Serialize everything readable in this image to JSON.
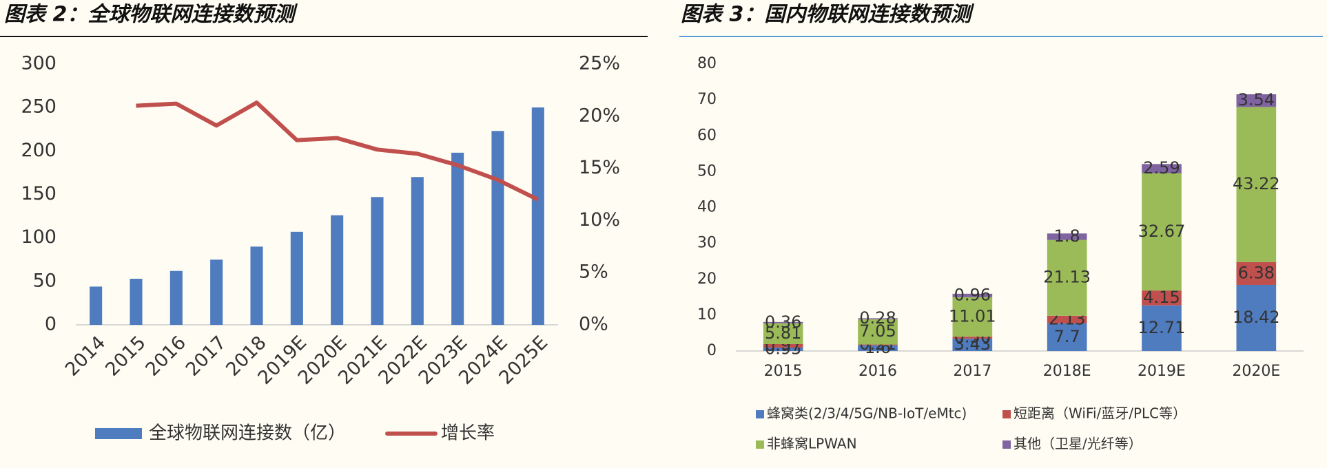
{
  "chart_data": [
    {
      "type": "combo",
      "title": "图表 2：全球物联网连接数预测",
      "categories": [
        "2014",
        "2015",
        "2016",
        "2017",
        "2018",
        "2019E",
        "2020E",
        "2021E",
        "2022E",
        "2023E",
        "2024E",
        "2025E"
      ],
      "series": [
        {
          "name": "全球物联网连接数（亿）",
          "color": "#4f7bbf",
          "type": "bar",
          "values": [
            44,
            53,
            62,
            75,
            90,
            107,
            126,
            147,
            170,
            198,
            223,
            250
          ]
        },
        {
          "name": "增长率",
          "color": "#c0504d",
          "type": "line",
          "axis": "y2",
          "values": [
            null,
            21.0,
            21.2,
            19.1,
            21.3,
            17.7,
            17.9,
            16.8,
            16.4,
            15.3,
            13.9,
            12.0
          ]
        }
      ],
      "ylim": [
        0,
        300
      ],
      "yticks": [
        0,
        50,
        100,
        150,
        200,
        250,
        300
      ],
      "y2lim": [
        0,
        25
      ],
      "y2ticks": [
        {
          "value": 0,
          "label": "0%"
        },
        {
          "value": 5,
          "label": "5%"
        },
        {
          "value": 10,
          "label": "10%"
        },
        {
          "value": 15,
          "label": "15%"
        },
        {
          "value": 20,
          "label": "20%"
        },
        {
          "value": 25,
          "label": "25%"
        }
      ],
      "grid": false,
      "legend": "bottom"
    },
    {
      "type": "stacked_bar",
      "title": "图表 3：国内物联网连接数预测",
      "categories": [
        "2015",
        "2016",
        "2017",
        "2018E",
        "2019E",
        "2020E"
      ],
      "series": [
        {
          "name": "蜂窝类(2/3/4/5G/NB-IoT/eMtc)",
          "color": "#4f7bbf",
          "values": [
            0.95,
            1.6,
            3.43,
            7.7,
            12.71,
            18.42
          ]
        },
        {
          "name": "短距离（WiFi/蓝牙/PLC等）",
          "color": "#c0504d",
          "values": [
            0.97,
            0.21,
            0.56,
            2.13,
            4.15,
            6.38
          ]
        },
        {
          "name": "非蜂窝LPWAN",
          "color": "#9bbb59",
          "values": [
            5.81,
            7.05,
            11.01,
            21.13,
            32.67,
            43.22
          ]
        },
        {
          "name": "其他（卫星/光纤等）",
          "color": "#8064a2",
          "values": [
            0.36,
            0.28,
            0.96,
            1.8,
            2.59,
            3.54
          ]
        }
      ],
      "ylim": [
        0,
        80
      ],
      "yticks": [
        0,
        10,
        20,
        30,
        40,
        50,
        60,
        70,
        80
      ],
      "grid": false,
      "data_labels": true,
      "legend": "bottom"
    }
  ]
}
